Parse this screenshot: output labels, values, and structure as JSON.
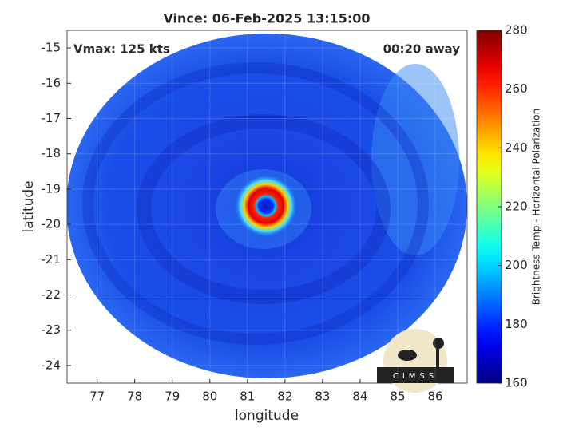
{
  "chart_data": {
    "type": "image-map",
    "title": "Vince: 06-Feb-2025 13:15:00",
    "annotations": [
      "Vmax: 125 kts",
      "00:20 away"
    ],
    "xlabel": "longitude",
    "ylabel": "latitude",
    "xlim": [
      76.2,
      86.85
    ],
    "xticks": [
      77,
      78,
      79,
      80,
      81,
      82,
      83,
      84,
      85,
      86
    ],
    "ylim": [
      -24.5,
      -14.5
    ],
    "yticks": [
      -24,
      -23,
      -22,
      -21,
      -20,
      -19,
      -18,
      -17,
      -16,
      -15
    ],
    "grid": true,
    "colorbar": {
      "label": "Brightness Temp - Horizontal Polarization",
      "lim": [
        160,
        280
      ],
      "ticks": [
        160,
        180,
        200,
        220,
        240,
        260,
        280
      ],
      "colormap": "jet"
    },
    "logo": "CIMSS"
  }
}
